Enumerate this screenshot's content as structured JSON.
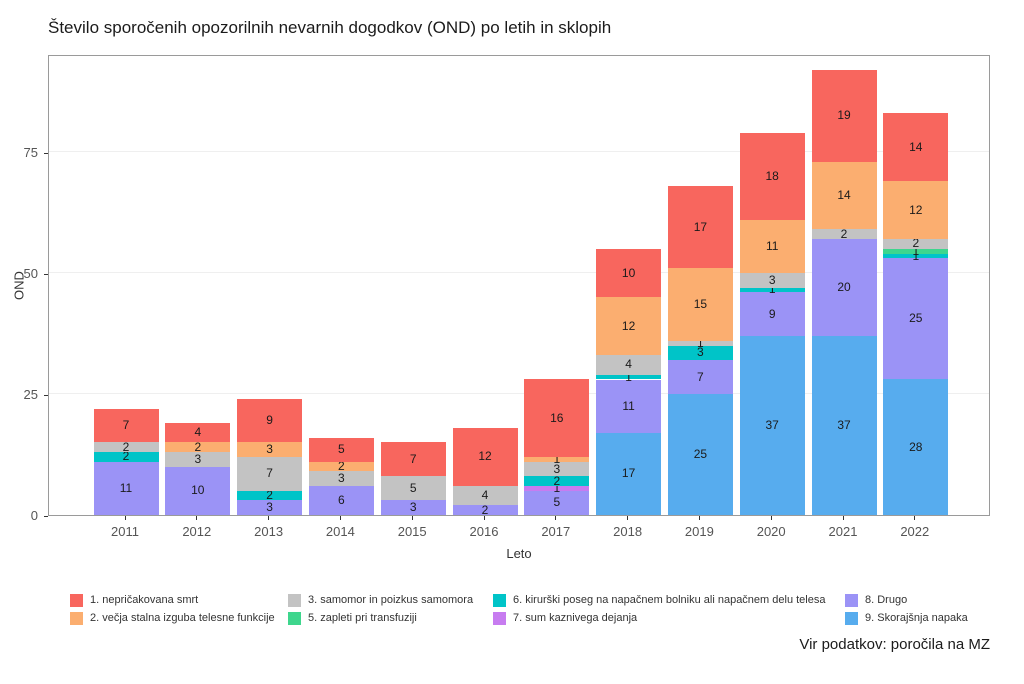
{
  "chart": {
    "title": "Število sporočenih opozorilnih nevarnih dogodkov (OND) po letih in sklopih",
    "y_axis": {
      "label": "OND",
      "ticks": [
        0,
        25,
        50,
        75
      ]
    },
    "x_axis": {
      "label": "Leto"
    },
    "source_note": "Vir podatkov: poročila na MZ"
  },
  "chart_data": {
    "type": "bar",
    "stacked": true,
    "title": "Število sporočenih opozorilnih nevarnih dogodkov (OND) po letih in sklopih",
    "xlabel": "Leto",
    "ylabel": "OND",
    "ylim": [
      0,
      95
    ],
    "grid": "horizontal-major",
    "legend_position": "bottom",
    "categories": [
      "2011",
      "2012",
      "2013",
      "2014",
      "2015",
      "2016",
      "2017",
      "2018",
      "2019",
      "2020",
      "2021",
      "2022"
    ],
    "series": [
      {
        "name": "9. Skorajšnja napaka",
        "color": "#57ACEE",
        "values": [
          0,
          0,
          0,
          0,
          0,
          0,
          0,
          17,
          25,
          37,
          37,
          28
        ]
      },
      {
        "name": "8. Drugo",
        "color": "#9B93F6",
        "values": [
          11,
          10,
          3,
          6,
          3,
          2,
          5,
          11,
          7,
          9,
          20,
          25
        ]
      },
      {
        "name": "7. sum kaznivega dejanja",
        "color": "#C77CF0",
        "values": [
          0,
          0,
          0,
          0,
          0,
          0,
          1,
          0,
          0,
          0,
          0,
          0
        ]
      },
      {
        "name": "6. kirurški poseg na napačnem bolniku ali napačnem delu telesa",
        "color": "#00C4C8",
        "values": [
          2,
          0,
          2,
          0,
          0,
          0,
          2,
          1,
          3,
          1,
          0,
          1
        ]
      },
      {
        "name": "5. zapleti pri transfuziji",
        "color": "#3ED68D",
        "values": [
          0,
          0,
          0,
          0,
          0,
          0,
          0,
          0,
          0,
          0,
          0,
          1
        ]
      },
      {
        "name": "3. samomor in poizkus samomora",
        "color": "#C3C3C3",
        "values": [
          2,
          3,
          7,
          3,
          5,
          4,
          3,
          4,
          1,
          3,
          2,
          2
        ]
      },
      {
        "name": "2. večja stalna izguba telesne funkcije",
        "color": "#FBAE70",
        "values": [
          0,
          2,
          3,
          2,
          0,
          0,
          1,
          12,
          15,
          11,
          14,
          12
        ]
      },
      {
        "name": "1. nepričakovana smrt",
        "color": "#F8665E",
        "values": [
          7,
          4,
          9,
          5,
          7,
          12,
          16,
          10,
          17,
          18,
          19,
          14
        ]
      }
    ],
    "totals": [
      22,
      19,
      24,
      16,
      15,
      18,
      28,
      55,
      68,
      79,
      92,
      83
    ]
  },
  "legend": {
    "columns": [
      [
        {
          "label": "1. nepričakovana smrt",
          "color": "#F8665E"
        },
        {
          "label": "2. večja stalna izguba telesne funkcije",
          "color": "#FBAE70"
        }
      ],
      [
        {
          "label": "3. samomor in poizkus samomora",
          "color": "#C3C3C3"
        },
        {
          "label": "5. zapleti pri transfuziji",
          "color": "#3ED68D"
        }
      ],
      [
        {
          "label": "6. kirurški poseg na napačnem bolniku ali napačnem delu telesa",
          "color": "#00C4C8"
        },
        {
          "label": "7. sum kaznivega dejanja",
          "color": "#C77CF0"
        }
      ],
      [
        {
          "label": "8. Drugo",
          "color": "#9B93F6"
        },
        {
          "label": "9. Skorajšnja napaka",
          "color": "#57ACEE"
        }
      ]
    ]
  }
}
